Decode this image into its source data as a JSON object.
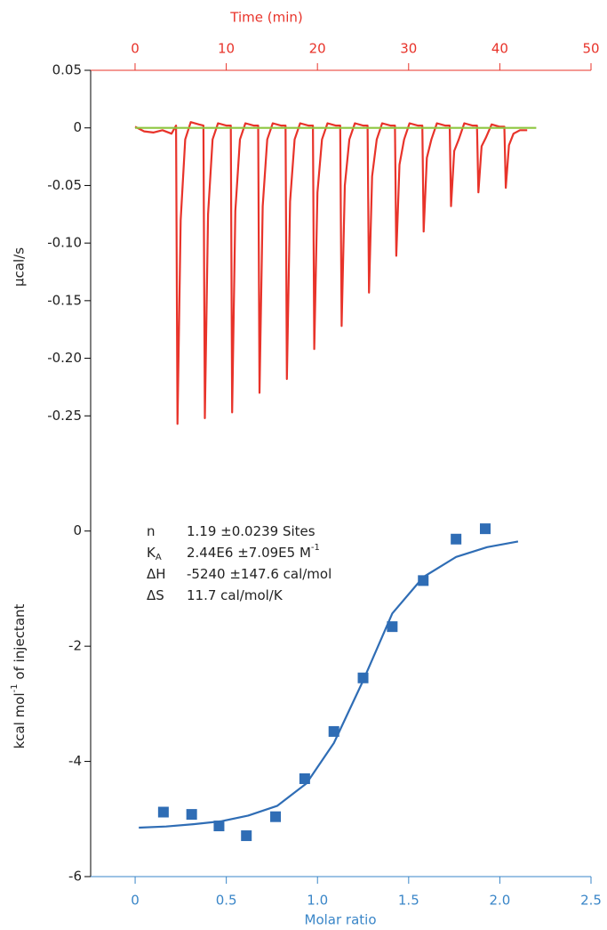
{
  "chart_data": [
    {
      "type": "line",
      "xlabel": "Time (min)",
      "ylabel": "µcal/s",
      "xlim": [
        -4.87,
        50
      ],
      "ylim": [
        -0.3,
        0.05
      ],
      "xticks": [
        0,
        10,
        20,
        30,
        40,
        50
      ],
      "yticks": [
        0.05,
        0,
        -0.05,
        {
          "value": -0.1,
          "label": "-0.10"
        },
        -0.15,
        {
          "value": -0.2,
          "label": "-0.20"
        },
        -0.25
      ],
      "series": [
        {
          "color": "#e8332a",
          "x": [
            0,
            1,
            2,
            3,
            4,
            4.5,
            4.65,
            5.0,
            5.5,
            6.1,
            7.0,
            7.5,
            7.65,
            8.0,
            8.5,
            9.1,
            10.0,
            10.5,
            10.65,
            11.0,
            11.5,
            12.1,
            13.0,
            13.5,
            13.65,
            14.0,
            14.5,
            15.1,
            16.0,
            16.5,
            16.65,
            17.0,
            17.5,
            18.1,
            19.0,
            19.5,
            19.65,
            20.0,
            20.5,
            21.1,
            22.0,
            22.5,
            22.65,
            23.0,
            23.5,
            24.1,
            25.0,
            25.5,
            25.65,
            26.0,
            26.5,
            27.1,
            28.0,
            28.5,
            28.65,
            29.0,
            29.5,
            30.1,
            31.0,
            31.5,
            31.65,
            32.0,
            32.5,
            33.1,
            34.0,
            34.5,
            34.65,
            35.0,
            35.5,
            36.1,
            37.0,
            37.5,
            37.65,
            38.0,
            38.5,
            39.1,
            40.0,
            40.5,
            40.65,
            41.0,
            41.5,
            42.2,
            43.0
          ],
          "values": [
            0.001,
            -0.003,
            -0.004,
            -0.002,
            -0.005,
            0.002,
            -0.257,
            -0.08,
            -0.01,
            0.005,
            0.003,
            0.002,
            -0.252,
            -0.075,
            -0.01,
            0.004,
            0.002,
            0.002,
            -0.247,
            -0.072,
            -0.01,
            0.004,
            0.002,
            0.002,
            -0.23,
            -0.068,
            -0.01,
            0.004,
            0.002,
            0.002,
            -0.218,
            -0.064,
            -0.01,
            0.004,
            0.002,
            0.002,
            -0.192,
            -0.056,
            -0.01,
            0.004,
            0.002,
            0.002,
            -0.172,
            -0.05,
            -0.01,
            0.004,
            0.002,
            0.002,
            -0.143,
            -0.042,
            -0.01,
            0.004,
            0.002,
            0.002,
            -0.111,
            -0.032,
            -0.01,
            0.004,
            0.002,
            0.002,
            -0.09,
            -0.026,
            -0.01,
            0.004,
            0.002,
            0.002,
            -0.068,
            -0.02,
            -0.01,
            0.004,
            0.002,
            0.002,
            -0.056,
            -0.016,
            -0.008,
            0.003,
            0.001,
            0.001,
            -0.052,
            -0.015,
            -0.005,
            -0.002,
            -0.002
          ]
        },
        {
          "color": "#8dc63f",
          "x": [
            0,
            44
          ],
          "values": [
            0,
            0
          ]
        }
      ]
    },
    {
      "type": "scatter",
      "xlabel": "Molar ratio",
      "ylabel": [
        "kcal mol",
        "-1",
        " of injectant"
      ],
      "xlim": [
        -0.244,
        2.5
      ],
      "ylim": [
        -6,
        1
      ],
      "xticks": [
        0,
        0.5,
        {
          "value": 1,
          "label": "1.0"
        },
        1.5,
        {
          "value": 2,
          "label": "2.0"
        },
        2.5
      ],
      "yticks": [
        0,
        -2,
        -4,
        -6
      ],
      "annotations": [
        {
          "symbol": "n",
          "text": "1.19 ±0.0239 Sites"
        },
        {
          "symbol": "K",
          "sub": "A",
          "text": "2.44E6 ±7.09E5 M",
          "sup": "-1"
        },
        {
          "symbol": "ΔH",
          "text": "-5240 ±147.6 cal/mol"
        },
        {
          "symbol": "ΔS",
          "text": "11.7 cal/mol/K"
        }
      ],
      "series": [
        {
          "type": "scatter",
          "color": "#2f6db5",
          "x": [
            0.155,
            0.31,
            0.46,
            0.61,
            0.77,
            0.93,
            1.09,
            1.25,
            1.41,
            1.58,
            1.76,
            1.92
          ],
          "values": [
            -4.88,
            -4.92,
            -5.12,
            -5.29,
            -4.96,
            -4.3,
            -3.48,
            -2.55,
            -1.66,
            -0.86,
            -0.14,
            0.04
          ]
        },
        {
          "type": "line",
          "color": "#2f6db5",
          "x": [
            0.02,
            0.17,
            0.32,
            0.47,
            0.62,
            0.78,
            0.94,
            1.09,
            1.25,
            1.41,
            1.58,
            1.76,
            1.93,
            2.1
          ],
          "values": [
            -5.15,
            -5.13,
            -5.09,
            -5.04,
            -4.94,
            -4.77,
            -4.38,
            -3.68,
            -2.6,
            -1.43,
            -0.8,
            -0.45,
            -0.28,
            -0.18
          ]
        }
      ]
    }
  ]
}
